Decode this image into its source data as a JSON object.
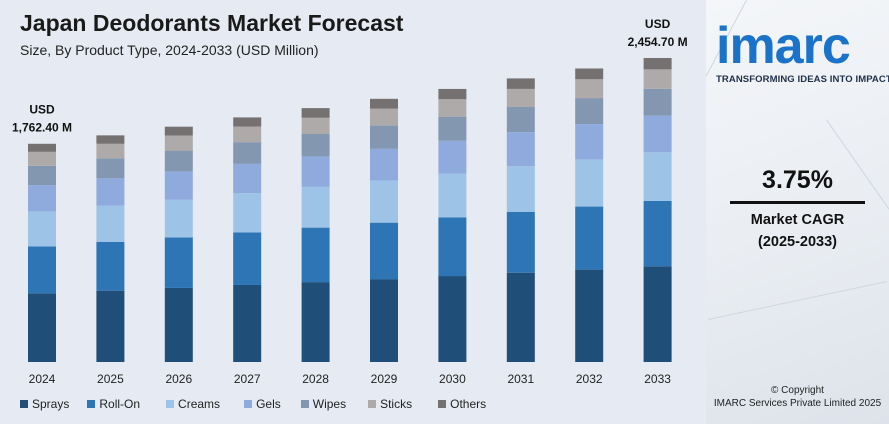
{
  "chart_data": {
    "type": "bar",
    "stacked": true,
    "title": "Japan Deodorants Market Forecast",
    "subtitle": "Size, By Product Type, 2024-2033 (USD Million)",
    "categories": [
      "2024",
      "2025",
      "2026",
      "2027",
      "2028",
      "2029",
      "2030",
      "2031",
      "2032",
      "2033"
    ],
    "totals": [
      1762.4,
      1830,
      1900,
      1975,
      2050,
      2125,
      2205,
      2290,
      2370,
      2454.7
    ],
    "series": [
      {
        "name": "Sprays",
        "color": "#1f4e79",
        "values": [
          555,
          576,
          598,
          622,
          645,
          669,
          694,
          721,
          746,
          773
        ]
      },
      {
        "name": "Roll-On",
        "color": "#2e75b6",
        "values": [
          378,
          393,
          408,
          424,
          440,
          456,
          473,
          492,
          509,
          527
        ]
      },
      {
        "name": "Creams",
        "color": "#9dc3e6",
        "values": [
          283,
          294,
          305,
          317,
          329,
          341,
          354,
          368,
          381,
          394
        ]
      },
      {
        "name": "Gels",
        "color": "#8faadc",
        "values": [
          212,
          220,
          228,
          237,
          246,
          255,
          265,
          275,
          285,
          295
        ]
      },
      {
        "name": "Wipes",
        "color": "#8497b0",
        "values": [
          156,
          162,
          168,
          175,
          181,
          188,
          195,
          203,
          210,
          217
        ]
      },
      {
        "name": "Sticks",
        "color": "#aeaaaa",
        "values": [
          113,
          117,
          122,
          126,
          131,
          136,
          141,
          146,
          152,
          157
        ]
      },
      {
        "name": "Others",
        "color": "#767171",
        "values": [
          65,
          68,
          71,
          74,
          78,
          80,
          83,
          85,
          87,
          91.7
        ]
      }
    ],
    "annotations": [
      {
        "category": "2024",
        "line1": "USD",
        "line2": "1,762.40 M"
      },
      {
        "category": "2033",
        "line1": "USD",
        "line2": "2,454.70 M"
      }
    ],
    "ylim": [
      0,
      2600
    ],
    "grid": false,
    "legend_position": "bottom"
  },
  "branding": {
    "logo": "imarc",
    "tagline": "TRANSFORMING IDEAS INTO IMPACT",
    "logo_color": "#1a73c8"
  },
  "cagr": {
    "value": "3.75%",
    "label": "Market CAGR",
    "period": "(2025-2033)"
  },
  "footer": {
    "copyright_line1": "© Copyright",
    "copyright_line2": "IMARC Services Private Limited 2025"
  }
}
